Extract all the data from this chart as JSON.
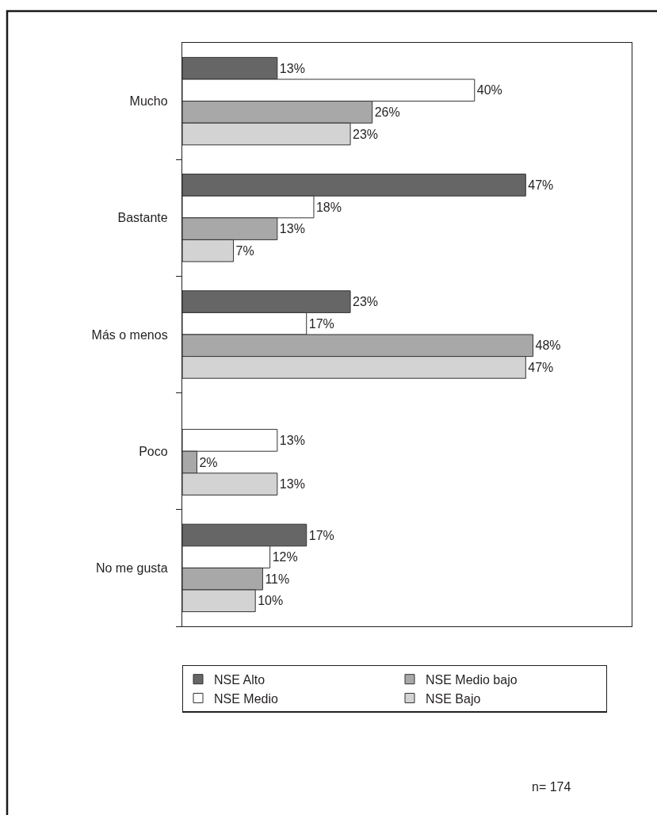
{
  "chart_data": {
    "type": "bar",
    "orientation": "horizontal",
    "categories": [
      "Mucho",
      "Bastante",
      "Más o menos",
      "Poco",
      "No me gusta"
    ],
    "series": [
      {
        "name": "NSE Alto",
        "color": "#666666",
        "values": [
          13,
          47,
          23,
          null,
          17
        ],
        "value_labels": [
          "13%",
          "47%",
          "23%",
          null,
          "17%"
        ]
      },
      {
        "name": "NSE Medio",
        "color": "#ffffff",
        "values": [
          40,
          18,
          17,
          13,
          12
        ],
        "value_labels": [
          "40%",
          "18%",
          "17%",
          "13%",
          "12%"
        ]
      },
      {
        "name": "NSE Medio bajo",
        "color": "#a8a8a8",
        "values": [
          26,
          13,
          48,
          2,
          11
        ],
        "value_labels": [
          "26%",
          "13%",
          "48%",
          "2%",
          "11%"
        ]
      },
      {
        "name": "NSE Bajo",
        "color": "#d3d3d3",
        "values": [
          23,
          7,
          47,
          13,
          10
        ],
        "value_labels": [
          "23%",
          "7%",
          "47%",
          "13%",
          "10%"
        ]
      }
    ],
    "xlim": [
      0,
      61.5
    ],
    "tick_labels": "y",
    "legend": "bottom",
    "annotations": [
      "n= 174"
    ]
  }
}
